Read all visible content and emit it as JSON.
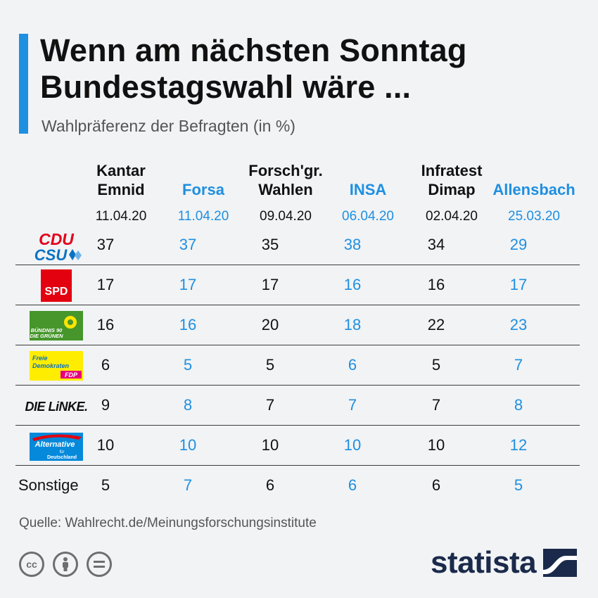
{
  "header": {
    "title_line1": "Wenn am nächsten Sonntag",
    "title_line2": "Bundestagswahl wäre ...",
    "subtitle": "Wahlpräferenz der Befragten (in %)"
  },
  "chart_data": {
    "type": "table",
    "title": "Wenn am nächsten Sonntag Bundestagswahl wäre ...",
    "subtitle": "Wahlpräferenz der Befragten (in %)",
    "institutes": [
      {
        "name_line1": "Kantar",
        "name_line2": "Emnid",
        "date": "11.04.20",
        "highlight": false
      },
      {
        "name_line1": "",
        "name_line2": "Forsa",
        "date": "11.04.20",
        "highlight": true
      },
      {
        "name_line1": "Forsch'gr.",
        "name_line2": "Wahlen",
        "date": "09.04.20",
        "highlight": false
      },
      {
        "name_line1": "",
        "name_line2": "INSA",
        "date": "06.04.20",
        "highlight": true
      },
      {
        "name_line1": "Infratest",
        "name_line2": "Dimap",
        "date": "02.04.20",
        "highlight": false
      },
      {
        "name_line1": "",
        "name_line2": "Allensbach",
        "date": "25.03.20",
        "highlight": true
      }
    ],
    "rows": [
      {
        "party": "CDU/CSU",
        "logo_text": [
          "CDU",
          "CSU"
        ],
        "values": [
          37,
          37,
          35,
          38,
          34,
          29
        ]
      },
      {
        "party": "SPD",
        "logo_text": [
          "SPD"
        ],
        "values": [
          17,
          17,
          17,
          16,
          16,
          17
        ]
      },
      {
        "party": "Bündnis 90/Die Grünen",
        "logo_text": [
          "BÜNDNIS 90",
          "DIE GRÜNEN"
        ],
        "values": [
          16,
          16,
          20,
          18,
          22,
          23
        ]
      },
      {
        "party": "FDP",
        "logo_text": [
          "Freie",
          "Demokraten",
          "FDP"
        ],
        "values": [
          6,
          5,
          5,
          6,
          5,
          7
        ]
      },
      {
        "party": "Die Linke",
        "logo_text": [
          "DIE LiNKE."
        ],
        "values": [
          9,
          8,
          7,
          7,
          7,
          8
        ]
      },
      {
        "party": "AfD",
        "logo_text": [
          "Alternative",
          "für",
          "Deutschland"
        ],
        "values": [
          10,
          10,
          10,
          10,
          10,
          12
        ]
      },
      {
        "party": "Sonstige",
        "label": "Sonstige",
        "values": [
          5,
          7,
          6,
          6,
          6,
          5
        ]
      }
    ],
    "colors": {
      "accent": "#1f8fe0",
      "text": "#111111"
    }
  },
  "footer": {
    "source": "Quelle: Wahlrecht.de/Meinungsforschungsinstitute",
    "brand": "statista",
    "license_icons": [
      "cc-icon",
      "by-icon",
      "nd-icon"
    ]
  }
}
